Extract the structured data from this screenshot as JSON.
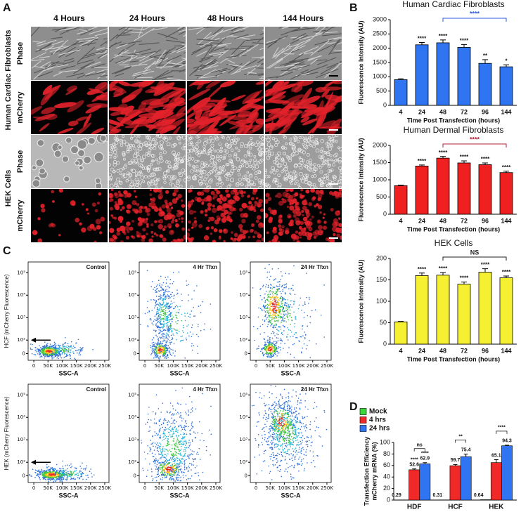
{
  "panels": [
    "A",
    "B",
    "C",
    "D"
  ],
  "micrographs": {
    "columns": [
      "4 Hours",
      "24 Hours",
      "48 Hours",
      "144 Hours"
    ],
    "groups": [
      {
        "name": "Human Cardiac Fibroblasts",
        "rows": [
          "Phase",
          "mCherry"
        ]
      },
      {
        "name": "HEK Cells",
        "rows": [
          "Phase",
          "mCherry"
        ]
      }
    ]
  },
  "chart_data": [
    {
      "type": "bar",
      "title": "Human Cardiac Fibroblasts",
      "xlabel": "Time Post Transfection (hours)",
      "ylabel": "Fluorescence Intensity (AU)",
      "categories": [
        "4",
        "24",
        "48",
        "72",
        "96",
        "144"
      ],
      "values": [
        900,
        2120,
        2190,
        2030,
        1470,
        1350
      ],
      "errors": [
        30,
        80,
        100,
        100,
        130,
        70
      ],
      "significance": [
        null,
        "****",
        "****",
        "****",
        "**",
        "*"
      ],
      "comparison": {
        "from": "48",
        "to": "144",
        "label": "****",
        "color": "#2f5be0"
      },
      "color": "#2f74f0",
      "ylim": [
        0,
        3000
      ],
      "yticks": [
        0,
        500,
        1000,
        1500,
        2000,
        2500,
        3000
      ]
    },
    {
      "type": "bar",
      "title": "Human Dermal Fibroblasts",
      "xlabel": "Time Post Transfection (hours)",
      "ylabel": "Fluorescence Intensity (AU)",
      "categories": [
        "4",
        "24",
        "48",
        "72",
        "96",
        "144"
      ],
      "values": [
        830,
        1400,
        1630,
        1490,
        1440,
        1210
      ],
      "errors": [
        15,
        30,
        50,
        60,
        50,
        40
      ],
      "significance": [
        null,
        "****",
        "****",
        "****",
        "****",
        "****"
      ],
      "comparison": {
        "from": "48",
        "to": "144",
        "label": "****",
        "color": "#b0203a"
      },
      "color": "#f02020",
      "ylim": [
        0,
        2000
      ],
      "yticks": [
        0,
        500,
        1000,
        1500,
        2000
      ]
    },
    {
      "type": "bar",
      "title": "HEK Cells",
      "xlabel": "Time Post Transfection (hours)",
      "ylabel": "Fluorescence Intensity (AU)",
      "categories": [
        "4",
        "24",
        "48",
        "72",
        "96",
        "144"
      ],
      "values": [
        52,
        160,
        161,
        140,
        168,
        155
      ],
      "errors": [
        1,
        6,
        6,
        5,
        8,
        4
      ],
      "significance": [
        null,
        "****",
        "****",
        "****",
        "****",
        "****"
      ],
      "comparison": {
        "from": "48",
        "to": "144",
        "label": "NS",
        "color": "#222222"
      },
      "color": "#f5f032",
      "ylim": [
        0,
        200
      ],
      "yticks": [
        0,
        50,
        100,
        150,
        200
      ]
    },
    {
      "type": "grouped-bar",
      "ylabel": [
        "Transfection Efficiency",
        "mCherry mRNA (%)"
      ],
      "categories": [
        "HDF",
        "HCF",
        "HEK"
      ],
      "series": [
        {
          "name": "Mock",
          "color": "#3bd83b",
          "values": [
            0.29,
            0.31,
            0.64
          ]
        },
        {
          "name": "4 hrs",
          "color": "#f02828",
          "values": [
            52.6,
            59.7,
            65.1
          ],
          "errors": [
            1.5,
            2,
            5
          ],
          "significance": [
            "****",
            null,
            null
          ]
        },
        {
          "name": "24 hrs",
          "color": "#2f74f0",
          "values": [
            62.9,
            75.4,
            94.3
          ],
          "errors": [
            2,
            4.5,
            1
          ],
          "significance": [
            "****",
            null,
            null
          ]
        }
      ],
      "comparison_labels": [
        "ns",
        "**",
        "****"
      ],
      "ylim": [
        0,
        100
      ],
      "yticks": [
        0,
        20,
        40,
        60,
        80,
        100
      ],
      "legend": "upper left"
    },
    {
      "type": "density",
      "title": "Control",
      "ylabel": "HCF (mCherry Fluorescence)",
      "xlabel": "SSC-A",
      "xlim": [
        -20000,
        265000
      ],
      "xticks": [
        0,
        {
          "value": 50000,
          "label": "50K"
        },
        {
          "value": 100000,
          "label": "100K"
        },
        {
          "value": 150000,
          "label": "150K"
        },
        {
          "value": 200000,
          "label": "200K"
        },
        {
          "value": 250000,
          "label": "250K"
        }
      ],
      "ylim": [
        -50,
        300000
      ],
      "yticks": [
        0,
        {
          "value": 100,
          "label": "10²"
        },
        {
          "value": 1000,
          "label": "10³"
        },
        {
          "value": 10000,
          "label": "10⁴"
        },
        {
          "value": 100000,
          "label": "10⁵"
        }
      ],
      "yscale": "biexponential"
    },
    {
      "type": "density",
      "title": "4 Hr Tfxn",
      "xlabel": "SSC-A",
      "xlim": [
        -20000,
        265000
      ],
      "xticks": [
        0,
        {
          "value": 50000,
          "label": "50K"
        },
        {
          "value": 100000,
          "label": "100K"
        },
        {
          "value": 150000,
          "label": "150K"
        },
        {
          "value": 200000,
          "label": "200K"
        },
        {
          "value": 250000,
          "label": "250K"
        }
      ],
      "ylim": [
        -50,
        300000
      ],
      "yticks": [
        0,
        {
          "value": 100,
          "label": "10²"
        },
        {
          "value": 1000,
          "label": "10³"
        },
        {
          "value": 10000,
          "label": "10⁴"
        },
        {
          "value": 100000,
          "label": "10⁵"
        }
      ],
      "yscale": "biexponential"
    },
    {
      "type": "density",
      "title": "24 Hr Tfxn",
      "xlabel": "SSC-A",
      "xlim": [
        -20000,
        265000
      ],
      "xticks": [
        0,
        {
          "value": 50000,
          "label": "50K"
        },
        {
          "value": 100000,
          "label": "100K"
        },
        {
          "value": 150000,
          "label": "150K"
        },
        {
          "value": 200000,
          "label": "200K"
        },
        {
          "value": 250000,
          "label": "250K"
        }
      ],
      "ylim": [
        -50,
        300000
      ],
      "yticks": [
        0,
        {
          "value": 100,
          "label": "10²"
        },
        {
          "value": 1000,
          "label": "10³"
        },
        {
          "value": 10000,
          "label": "10⁴"
        },
        {
          "value": 100000,
          "label": "10⁵"
        }
      ],
      "yscale": "biexponential"
    },
    {
      "type": "density",
      "title": "Control",
      "ylabel": "HEK (mCherry Fluorescence)",
      "xlabel": "SSC-A",
      "xlim": [
        -20000,
        265000
      ],
      "xticks": [
        0,
        {
          "value": 50000,
          "label": "50K"
        },
        {
          "value": 100000,
          "label": "100K"
        },
        {
          "value": 150000,
          "label": "150K"
        },
        {
          "value": 200000,
          "label": "200K"
        },
        {
          "value": 250000,
          "label": "250K"
        }
      ],
      "ylim": [
        -50,
        300000
      ],
      "yticks": [
        0,
        {
          "value": 100,
          "label": "10²"
        },
        {
          "value": 1000,
          "label": "10³"
        },
        {
          "value": 10000,
          "label": "10⁴"
        },
        {
          "value": 100000,
          "label": "10⁵"
        }
      ],
      "yscale": "biexponential"
    },
    {
      "type": "density",
      "title": "4 Hr Tfxn",
      "xlabel": "SSC-A",
      "xlim": [
        -20000,
        265000
      ],
      "xticks": [
        0,
        {
          "value": 50000,
          "label": "50K"
        },
        {
          "value": 100000,
          "label": "100K"
        },
        {
          "value": 150000,
          "label": "150K"
        },
        {
          "value": 200000,
          "label": "200K"
        },
        {
          "value": 250000,
          "label": "250K"
        }
      ],
      "ylim": [
        -50,
        300000
      ],
      "yticks": [
        0,
        {
          "value": 100,
          "label": "10²"
        },
        {
          "value": 1000,
          "label": "10³"
        },
        {
          "value": 10000,
          "label": "10⁴"
        },
        {
          "value": 100000,
          "label": "10⁵"
        }
      ],
      "yscale": "biexponential"
    },
    {
      "type": "density",
      "title": "24 Hr Tfxn",
      "xlabel": "SSC-A",
      "xlim": [
        -20000,
        265000
      ],
      "xticks": [
        0,
        {
          "value": 50000,
          "label": "50K"
        },
        {
          "value": 100000,
          "label": "100K"
        },
        {
          "value": 150000,
          "label": "150K"
        },
        {
          "value": 200000,
          "label": "200K"
        },
        {
          "value": 250000,
          "label": "250K"
        }
      ],
      "ylim": [
        -50,
        300000
      ],
      "yticks": [
        0,
        {
          "value": 100,
          "label": "10²"
        },
        {
          "value": 1000,
          "label": "10³"
        },
        {
          "value": 10000,
          "label": "10⁴"
        },
        {
          "value": 100000,
          "label": "10⁵"
        }
      ],
      "yscale": "biexponential"
    }
  ]
}
